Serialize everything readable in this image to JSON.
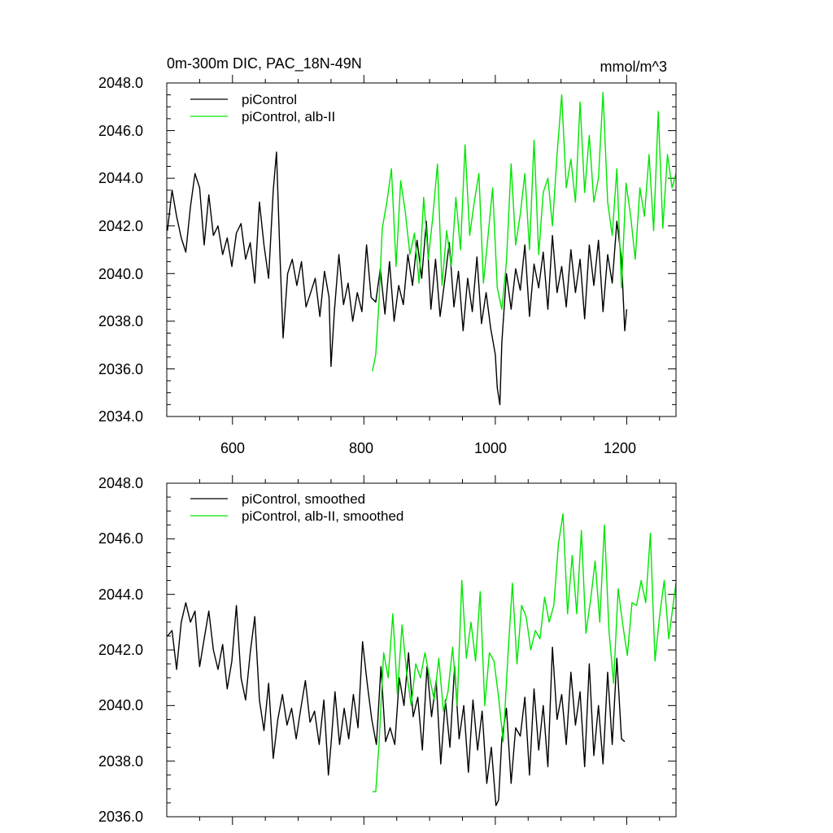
{
  "colors": {
    "control": "#000000",
    "alb": "#00e600",
    "axis": "#000000",
    "background": "#ffffff"
  },
  "chart_data": [
    {
      "type": "line",
      "title": "0m-300m DIC, PAC_18N-49N",
      "units": "mmol/m^3",
      "xlim": [
        500,
        1275
      ],
      "ylim": [
        2034,
        2048
      ],
      "xticks": [
        600,
        800,
        1000,
        1200
      ],
      "xtick_labels": [
        "600",
        "800",
        "1000",
        "1200"
      ],
      "yticks": [
        2034,
        2036,
        2038,
        2040,
        2042,
        2044,
        2046,
        2048
      ],
      "ytick_labels": [
        "2034.0",
        "2036.0",
        "2038.0",
        "2040.0",
        "2042.0",
        "2044.0",
        "2046.0",
        "2048.0"
      ],
      "legend_position": "top-left",
      "series": [
        {
          "name": "piControl",
          "color_key": "control",
          "x": [
            501,
            508,
            515,
            522,
            529,
            536,
            543,
            550,
            557,
            564,
            571,
            578,
            585,
            592,
            599,
            606,
            613,
            620,
            627,
            634,
            641,
            648,
            655,
            662,
            667,
            672,
            677,
            684,
            691,
            698,
            705,
            712,
            719,
            726,
            733,
            740,
            747,
            750,
            755,
            762,
            769,
            776,
            783,
            790,
            797,
            804,
            811,
            818,
            825,
            832,
            839,
            846,
            853,
            860,
            867,
            874,
            881,
            888,
            895,
            902,
            909,
            916,
            923,
            930,
            937,
            944,
            951,
            958,
            965,
            972,
            979,
            986,
            993,
            1000,
            1003,
            1007,
            1010,
            1017,
            1024,
            1031,
            1038,
            1045,
            1052,
            1059,
            1066,
            1073,
            1080,
            1087,
            1094,
            1101,
            1108,
            1115,
            1122,
            1129,
            1136,
            1143,
            1150,
            1157,
            1164,
            1171,
            1178,
            1185,
            1192,
            1197,
            1200
          ],
          "y": [
            2041.8,
            2043.5,
            2042.4,
            2041.5,
            2040.9,
            2042.8,
            2044.2,
            2043.6,
            2041.2,
            2043.3,
            2041.6,
            2042.0,
            2040.8,
            2041.5,
            2040.3,
            2041.7,
            2042.1,
            2040.6,
            2041.3,
            2039.6,
            2043.0,
            2041.2,
            2039.8,
            2043.5,
            2045.1,
            2041.0,
            2037.3,
            2040.0,
            2040.6,
            2039.5,
            2040.5,
            2038.6,
            2039.2,
            2039.8,
            2038.2,
            2040.1,
            2039.0,
            2036.1,
            2038.4,
            2040.8,
            2038.7,
            2039.6,
            2038.0,
            2039.2,
            2038.4,
            2041.2,
            2039.0,
            2038.8,
            2040.2,
            2038.3,
            2040.5,
            2038.0,
            2039.5,
            2038.7,
            2040.8,
            2039.5,
            2041.4,
            2039.8,
            2042.2,
            2038.5,
            2040.6,
            2038.2,
            2039.7,
            2041.3,
            2038.6,
            2040.1,
            2037.6,
            2039.8,
            2038.4,
            2040.7,
            2037.9,
            2039.2,
            2037.7,
            2036.6,
            2035.2,
            2034.5,
            2037.1,
            2040.0,
            2038.5,
            2040.2,
            2039.3,
            2041.2,
            2038.2,
            2040.4,
            2039.4,
            2040.9,
            2038.5,
            2041.6,
            2039.2,
            2040.3,
            2038.6,
            2041.0,
            2039.2,
            2040.6,
            2038.1,
            2041.2,
            2039.5,
            2041.4,
            2038.4,
            2040.8,
            2039.6,
            2042.2,
            2040.6,
            2037.6,
            2038.5
          ]
        },
        {
          "name": "piControl, alb-II",
          "color_key": "alb",
          "x": [
            813,
            818,
            823,
            828,
            835,
            842,
            849,
            856,
            863,
            870,
            877,
            884,
            891,
            898,
            905,
            912,
            919,
            926,
            933,
            940,
            947,
            954,
            961,
            968,
            975,
            982,
            989,
            996,
            1003,
            1010,
            1017,
            1024,
            1031,
            1038,
            1045,
            1052,
            1059,
            1066,
            1073,
            1080,
            1087,
            1094,
            1101,
            1108,
            1115,
            1122,
            1129,
            1136,
            1143,
            1150,
            1157,
            1164,
            1171,
            1178,
            1185,
            1192,
            1199,
            1206,
            1213,
            1220,
            1227,
            1234,
            1241,
            1248,
            1255,
            1262,
            1269,
            1275
          ],
          "y": [
            2035.9,
            2036.6,
            2038.8,
            2041.9,
            2043.0,
            2044.4,
            2040.3,
            2043.9,
            2042.6,
            2040.8,
            2041.7,
            2039.6,
            2043.2,
            2040.6,
            2042.4,
            2044.6,
            2039.5,
            2041.8,
            2040.3,
            2043.2,
            2041.0,
            2045.4,
            2041.6,
            2043.0,
            2044.2,
            2039.6,
            2041.6,
            2043.6,
            2039.4,
            2038.5,
            2040.5,
            2044.6,
            2041.2,
            2042.5,
            2044.2,
            2041.0,
            2045.6,
            2040.8,
            2043.4,
            2044.0,
            2042.0,
            2045.0,
            2047.5,
            2043.6,
            2044.8,
            2043.0,
            2047.2,
            2043.4,
            2045.8,
            2043.0,
            2044.0,
            2047.6,
            2043.0,
            2041.6,
            2044.4,
            2039.4,
            2043.8,
            2042.4,
            2040.6,
            2043.6,
            2042.4,
            2045.0,
            2041.8,
            2046.8,
            2041.9,
            2045.0,
            2043.6,
            2044.2
          ]
        }
      ],
      "legend": [
        {
          "label": "piControl",
          "color_key": "control"
        },
        {
          "label": "piControl, alb-II",
          "color_key": "alb"
        }
      ]
    },
    {
      "type": "line",
      "title": "",
      "units": "",
      "xlim": [
        500,
        1275
      ],
      "ylim": [
        2036,
        2048
      ],
      "xticks": [
        600,
        800,
        1000,
        1200
      ],
      "yticks": [
        2036,
        2038,
        2040,
        2042,
        2044,
        2046,
        2048
      ],
      "ytick_labels": [
        "2036.0",
        "2038.0",
        "2040.0",
        "2042.0",
        "2044.0",
        "2046.0",
        "2048.0"
      ],
      "legend_position": "top-left",
      "series": [
        {
          "name": "piControl, smoothed",
          "color_key": "control",
          "x": [
            501,
            508,
            515,
            522,
            529,
            536,
            543,
            550,
            557,
            564,
            571,
            578,
            585,
            592,
            599,
            606,
            613,
            620,
            627,
            634,
            641,
            648,
            655,
            662,
            669,
            676,
            683,
            690,
            697,
            704,
            711,
            718,
            725,
            732,
            739,
            746,
            750,
            756,
            763,
            770,
            777,
            784,
            791,
            798,
            805,
            812,
            819,
            826,
            833,
            840,
            847,
            854,
            861,
            868,
            875,
            882,
            889,
            896,
            903,
            910,
            917,
            924,
            931,
            938,
            945,
            952,
            959,
            966,
            973,
            980,
            987,
            994,
            1001,
            1005,
            1010,
            1017,
            1024,
            1031,
            1038,
            1045,
            1052,
            1059,
            1066,
            1073,
            1080,
            1087,
            1094,
            1101,
            1108,
            1115,
            1122,
            1129,
            1136,
            1143,
            1150,
            1157,
            1164,
            1171,
            1178,
            1185,
            1192,
            1197
          ],
          "y": [
            2042.5,
            2042.7,
            2041.3,
            2043.0,
            2043.7,
            2043.0,
            2043.4,
            2041.4,
            2042.4,
            2043.4,
            2042.0,
            2041.3,
            2042.2,
            2040.6,
            2041.6,
            2043.6,
            2041.0,
            2040.2,
            2041.9,
            2043.2,
            2040.2,
            2039.1,
            2040.8,
            2038.1,
            2039.5,
            2040.4,
            2039.3,
            2039.9,
            2038.8,
            2039.9,
            2040.9,
            2039.4,
            2039.8,
            2038.6,
            2040.2,
            2037.5,
            2038.6,
            2040.5,
            2038.6,
            2039.9,
            2038.8,
            2040.4,
            2039.2,
            2042.3,
            2040.8,
            2039.5,
            2038.6,
            2041.4,
            2038.7,
            2039.2,
            2038.6,
            2041.0,
            2040.0,
            2041.9,
            2039.6,
            2040.3,
            2038.4,
            2041.4,
            2039.6,
            2040.9,
            2037.9,
            2040.2,
            2038.5,
            2041.4,
            2038.8,
            2040.0,
            2037.6,
            2040.2,
            2038.4,
            2039.8,
            2037.2,
            2038.5,
            2036.4,
            2036.6,
            2038.8,
            2039.9,
            2037.2,
            2039.2,
            2038.9,
            2040.3,
            2037.5,
            2040.6,
            2038.4,
            2040.0,
            2037.8,
            2042.1,
            2039.5,
            2040.4,
            2038.6,
            2041.2,
            2039.3,
            2040.5,
            2037.8,
            2041.5,
            2038.2,
            2040.0,
            2037.9,
            2041.2,
            2038.6,
            2041.7,
            2038.8,
            2038.7
          ]
        },
        {
          "name": "piControl, alb-II, smoothed",
          "color_key": "alb",
          "x": [
            813,
            818,
            823,
            830,
            837,
            844,
            851,
            858,
            865,
            872,
            879,
            886,
            893,
            900,
            907,
            914,
            921,
            928,
            935,
            942,
            949,
            956,
            963,
            970,
            977,
            984,
            991,
            998,
            1005,
            1012,
            1019,
            1026,
            1033,
            1040,
            1047,
            1054,
            1061,
            1068,
            1075,
            1082,
            1089,
            1096,
            1103,
            1110,
            1117,
            1124,
            1131,
            1138,
            1145,
            1152,
            1159,
            1166,
            1173,
            1180,
            1187,
            1194,
            1201,
            1208,
            1215,
            1222,
            1229,
            1236,
            1243,
            1250,
            1257,
            1264,
            1271,
            1275
          ],
          "y": [
            2036.9,
            2036.9,
            2038.6,
            2041.9,
            2041.0,
            2043.3,
            2040.4,
            2042.9,
            2041.2,
            2040.0,
            2041.5,
            2041.0,
            2041.9,
            2041.0,
            2040.2,
            2041.7,
            2039.8,
            2040.5,
            2042.1,
            2040.0,
            2044.5,
            2041.7,
            2043.0,
            2041.6,
            2044.1,
            2040.0,
            2041.9,
            2041.6,
            2040.3,
            2038.7,
            2041.7,
            2044.4,
            2041.5,
            2043.6,
            2043.2,
            2042.0,
            2042.7,
            2042.4,
            2043.9,
            2043.0,
            2043.6,
            2045.8,
            2046.9,
            2043.3,
            2045.4,
            2043.3,
            2046.3,
            2042.6,
            2043.8,
            2045.2,
            2043.0,
            2046.5,
            2042.7,
            2040.8,
            2044.2,
            2042.9,
            2041.8,
            2043.7,
            2043.6,
            2044.5,
            2043.7,
            2046.2,
            2041.6,
            2043.2,
            2044.5,
            2042.4,
            2043.7,
            2044.4
          ]
        }
      ],
      "legend": [
        {
          "label": "piControl, smoothed",
          "color_key": "control"
        },
        {
          "label": "piControl, alb-II, smoothed",
          "color_key": "alb"
        }
      ]
    }
  ]
}
